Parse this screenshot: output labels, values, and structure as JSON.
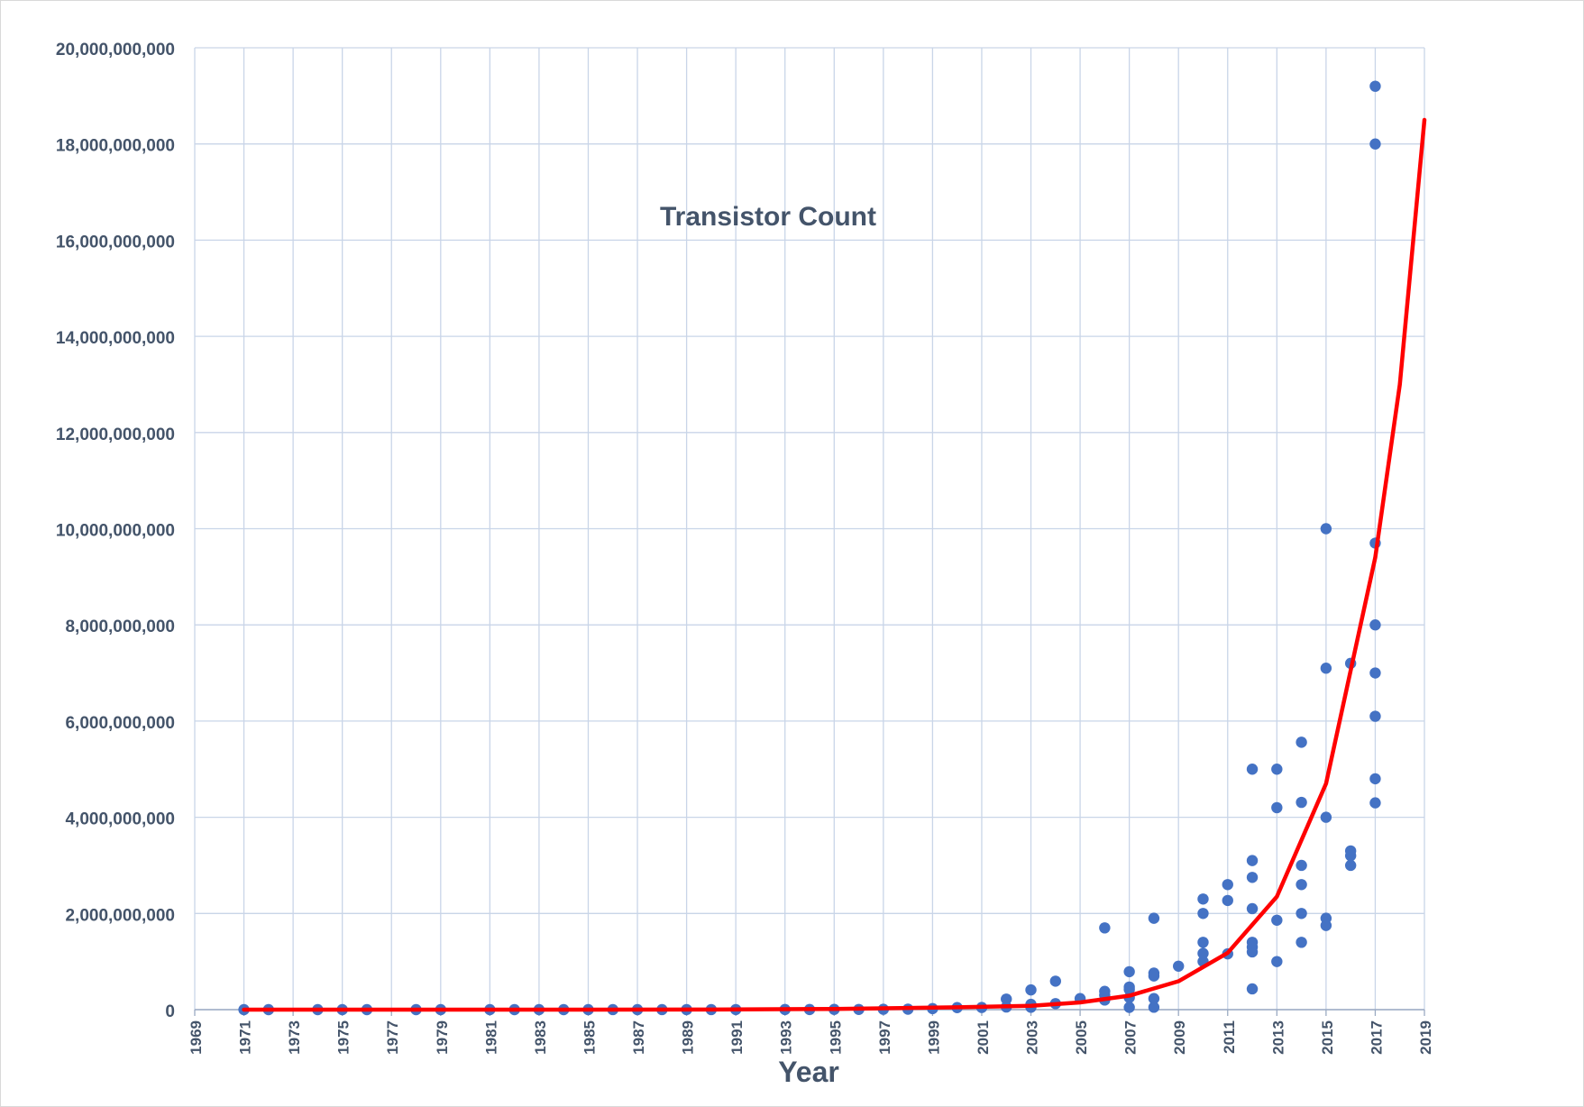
{
  "chart_data": {
    "type": "scatter",
    "title": "Transistor Count",
    "xlabel": "Year",
    "ylabel": "",
    "xlim": [
      1969,
      2019
    ],
    "ylim": [
      0,
      20000000000
    ],
    "x_ticks": [
      1969,
      1971,
      1973,
      1975,
      1977,
      1979,
      1981,
      1983,
      1985,
      1987,
      1989,
      1991,
      1993,
      1995,
      1997,
      1999,
      2001,
      2003,
      2005,
      2007,
      2009,
      2011,
      2013,
      2015,
      2017,
      2019
    ],
    "x_tick_labels": [
      "1969",
      "1971",
      "1973",
      "1975",
      "1977",
      "1979",
      "1981",
      "1983",
      "1985",
      "1987",
      "1989",
      "1991",
      "1993",
      "1995",
      "1997",
      "1999",
      "2001",
      "2003",
      "2005",
      "2007",
      "2009",
      "2011",
      "2013",
      "2015",
      "2017",
      "2019"
    ],
    "y_ticks": [
      0,
      2000000000,
      4000000000,
      6000000000,
      8000000000,
      10000000000,
      12000000000,
      14000000000,
      16000000000,
      18000000000,
      20000000000
    ],
    "y_tick_labels": [
      "0",
      "2,000,000,000",
      "4,000,000,000",
      "6,000,000,000",
      "8,000,000,000",
      "10,000,000,000",
      "12,000,000,000",
      "14,000,000,000",
      "16,000,000,000",
      "18,000,000,000",
      "20,000,000,000"
    ],
    "grid": "vertical and horizontal",
    "legend": "none",
    "colors": {
      "points": "#4472c4",
      "trend": "#ff0000",
      "grid": "#c9d5e8",
      "text": "#44546a"
    },
    "series": [
      {
        "type": "scatter",
        "points": [
          [
            1971,
            2300
          ],
          [
            1972,
            3500
          ],
          [
            1974,
            4500
          ],
          [
            1975,
            5000
          ],
          [
            1976,
            8500
          ],
          [
            1978,
            29000
          ],
          [
            1979,
            30000
          ],
          [
            1981,
            50000
          ],
          [
            1982,
            134000
          ],
          [
            1983,
            120000
          ],
          [
            1984,
            190000
          ],
          [
            1985,
            275000
          ],
          [
            1986,
            250000
          ],
          [
            1987,
            553000
          ],
          [
            1988,
            700000
          ],
          [
            1989,
            1180000
          ],
          [
            1990,
            1200000
          ],
          [
            1991,
            1350000
          ],
          [
            1993,
            3100000
          ],
          [
            1994,
            2500000
          ],
          [
            1995,
            5500000
          ],
          [
            1996,
            4300000
          ],
          [
            1997,
            7500000
          ],
          [
            1998,
            9500000
          ],
          [
            1999,
            21300000
          ],
          [
            2000,
            42000000
          ],
          [
            2001,
            45000000
          ],
          [
            2002,
            220000000
          ],
          [
            2002,
            55000000
          ],
          [
            2003,
            410000000
          ],
          [
            2003,
            110000000
          ],
          [
            2003,
            50000000
          ],
          [
            2004,
            592000000
          ],
          [
            2004,
            125000000
          ],
          [
            2005,
            230000000
          ],
          [
            2006,
            1700000000
          ],
          [
            2006,
            380000000
          ],
          [
            2006,
            300000000
          ],
          [
            2006,
            200000000
          ],
          [
            2007,
            789000000
          ],
          [
            2007,
            470000000
          ],
          [
            2007,
            420000000
          ],
          [
            2007,
            250000000
          ],
          [
            2007,
            47000000
          ],
          [
            2008,
            1900000000
          ],
          [
            2008,
            760000000
          ],
          [
            2008,
            700000000
          ],
          [
            2008,
            230000000
          ],
          [
            2008,
            50000000
          ],
          [
            2009,
            904000000
          ],
          [
            2010,
            2300000000
          ],
          [
            2010,
            2000000000
          ],
          [
            2010,
            1400000000
          ],
          [
            2010,
            1170000000
          ],
          [
            2010,
            1000000000
          ],
          [
            2011,
            2600000000
          ],
          [
            2011,
            2270000000
          ],
          [
            2011,
            1160000000
          ],
          [
            2012,
            5000000000
          ],
          [
            2012,
            3100000000
          ],
          [
            2012,
            2750000000
          ],
          [
            2012,
            2100000000
          ],
          [
            2012,
            1400000000
          ],
          [
            2012,
            1300000000
          ],
          [
            2012,
            1200000000
          ],
          [
            2012,
            432000000
          ],
          [
            2013,
            5000000000
          ],
          [
            2013,
            4200000000
          ],
          [
            2013,
            1860000000
          ],
          [
            2013,
            1000000000
          ],
          [
            2014,
            5560000000
          ],
          [
            2014,
            4310000000
          ],
          [
            2014,
            3000000000
          ],
          [
            2014,
            2600000000
          ],
          [
            2014,
            2000000000
          ],
          [
            2014,
            1400000000
          ],
          [
            2015,
            10000000000
          ],
          [
            2015,
            7100000000
          ],
          [
            2015,
            4000000000
          ],
          [
            2015,
            1900000000
          ],
          [
            2015,
            1750000000
          ],
          [
            2016,
            7200000000
          ],
          [
            2016,
            3300000000
          ],
          [
            2016,
            3200000000
          ],
          [
            2016,
            3000000000
          ],
          [
            2017,
            19200000000
          ],
          [
            2017,
            18000000000
          ],
          [
            2017,
            9700000000
          ],
          [
            2017,
            8000000000
          ],
          [
            2017,
            7000000000
          ],
          [
            2017,
            6100000000
          ],
          [
            2017,
            4800000000
          ],
          [
            2017,
            4300000000
          ]
        ]
      },
      {
        "type": "line",
        "fit": "exponential",
        "x": [
          1971,
          1975,
          1980,
          1985,
          1990,
          1995,
          2000,
          2003,
          2005,
          2007,
          2009,
          2011,
          2013,
          2015,
          2017,
          2018,
          2019
        ],
        "values": [
          2300,
          9800,
          60000,
          370000,
          2300000,
          14000000,
          50000000,
          80000000,
          150000000,
          290000000,
          590000000,
          1180000000,
          2350000000,
          4700000000,
          9400000000,
          13000000000,
          18500000000
        ]
      }
    ]
  }
}
